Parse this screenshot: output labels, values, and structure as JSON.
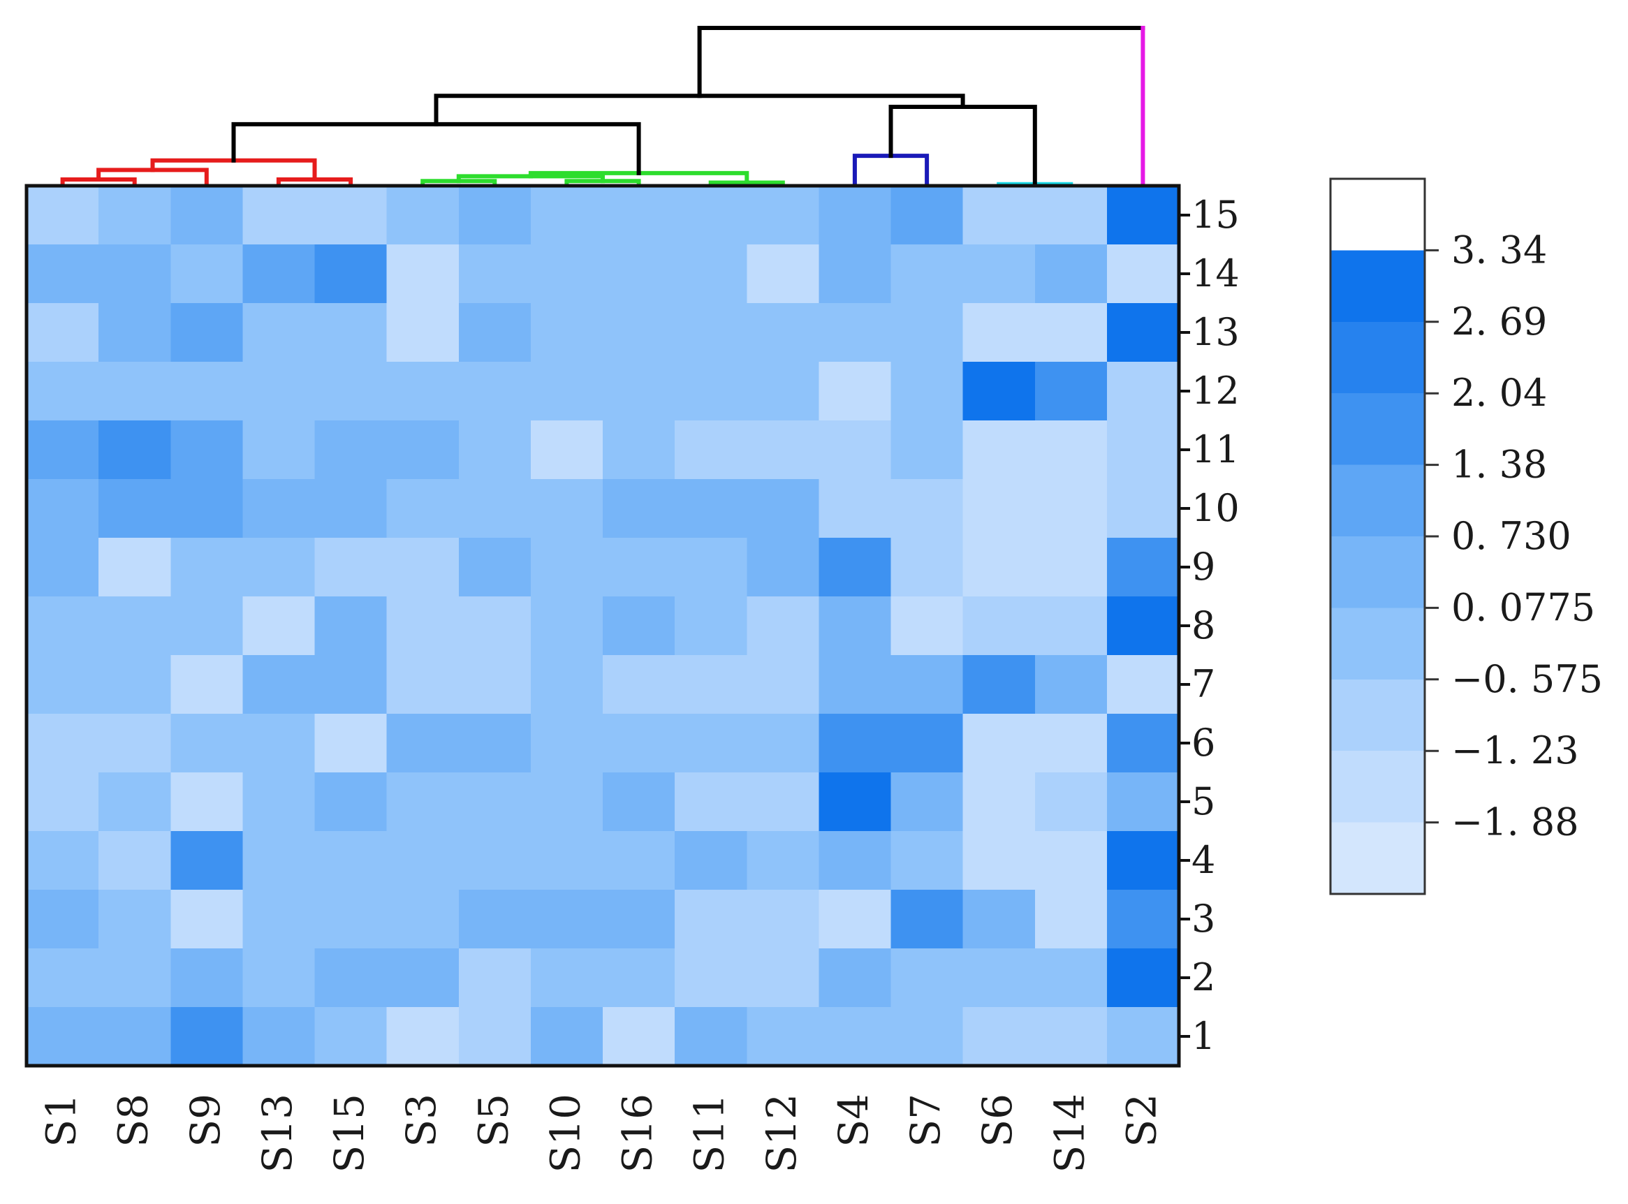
{
  "chart_data": {
    "type": "heatmap",
    "title": "",
    "xlabel": "",
    "ylabel": "",
    "columns": [
      "S1",
      "S8",
      "S9",
      "S13",
      "S15",
      "S3",
      "S5",
      "S10",
      "S16",
      "S11",
      "S12",
      "S4",
      "S7",
      "S6",
      "S14",
      "S2"
    ],
    "rows": [
      "15",
      "14",
      "13",
      "12",
      "11",
      "10",
      "9",
      "8",
      "7",
      "6",
      "5",
      "4",
      "3",
      "2",
      "1"
    ],
    "values": [
      [
        -0.9,
        -0.3,
        0.2,
        -0.9,
        -0.9,
        -0.3,
        0.2,
        -0.3,
        -0.3,
        -0.3,
        -0.3,
        0.2,
        1.0,
        -0.9,
        -0.9,
        2.7
      ],
      [
        0.2,
        0.2,
        -0.3,
        1.2,
        1.7,
        -1.6,
        -0.3,
        -0.3,
        -0.3,
        -0.3,
        -1.6,
        0.2,
        -0.3,
        -0.3,
        0.2,
        -1.3
      ],
      [
        -0.9,
        0.7,
        1.2,
        -0.3,
        -0.3,
        -1.6,
        0.2,
        -0.3,
        -0.3,
        -0.3,
        -0.3,
        -0.3,
        -0.3,
        -1.3,
        -1.3,
        3.0
      ],
      [
        -0.3,
        -0.3,
        -0.3,
        -0.3,
        -0.3,
        -0.3,
        -0.3,
        -0.3,
        -0.3,
        -0.3,
        -0.3,
        -1.3,
        -0.3,
        3.0,
        1.7,
        -0.6
      ],
      [
        1.2,
        1.7,
        1.2,
        -0.3,
        0.7,
        0.2,
        -0.3,
        -1.3,
        -0.3,
        -0.9,
        -0.9,
        -0.9,
        -0.3,
        -1.3,
        -1.3,
        -0.6
      ],
      [
        0.2,
        1.2,
        1.2,
        0.7,
        0.7,
        -0.3,
        -0.3,
        -0.3,
        0.2,
        0.2,
        0.2,
        -0.6,
        -0.9,
        -1.3,
        -1.3,
        -0.6
      ],
      [
        0.2,
        -1.3,
        -0.3,
        -0.3,
        -0.9,
        -0.9,
        0.2,
        -0.3,
        -0.3,
        -0.3,
        0.2,
        1.7,
        -0.6,
        -1.3,
        -1.3,
        1.7
      ],
      [
        -0.3,
        -0.3,
        -0.3,
        -1.3,
        0.7,
        -0.6,
        -0.9,
        -0.3,
        0.2,
        -0.3,
        -0.9,
        0.2,
        -1.3,
        -0.6,
        -0.6,
        3.0
      ],
      [
        -0.3,
        -0.3,
        -1.3,
        0.7,
        0.7,
        -0.9,
        -0.9,
        -0.3,
        -0.9,
        -0.9,
        -0.9,
        0.7,
        0.7,
        1.4,
        0.7,
        -1.3
      ],
      [
        -0.9,
        -0.9,
        -0.3,
        -0.3,
        -1.3,
        0.2,
        0.2,
        -0.3,
        -0.3,
        -0.3,
        -0.3,
        1.7,
        1.4,
        -1.3,
        -1.3,
        1.4
      ],
      [
        -0.9,
        -0.3,
        -1.3,
        -0.3,
        0.2,
        -0.3,
        -0.3,
        -0.3,
        0.2,
        -0.9,
        -0.9,
        3.0,
        0.7,
        -1.3,
        -0.6,
        0.7
      ],
      [
        -0.3,
        -0.9,
        1.4,
        -0.3,
        -0.3,
        -0.3,
        -0.3,
        -0.3,
        -0.3,
        0.2,
        -0.3,
        0.2,
        -0.3,
        -1.3,
        -1.3,
        2.7
      ],
      [
        0.2,
        -0.3,
        -1.3,
        -0.3,
        -0.3,
        -0.3,
        0.2,
        0.2,
        0.2,
        -0.9,
        -0.9,
        -1.3,
        1.4,
        0.2,
        -1.3,
        1.7
      ],
      [
        -0.3,
        -0.3,
        0.2,
        -0.3,
        0.2,
        0.2,
        -0.9,
        -0.3,
        -0.3,
        -0.9,
        -0.9,
        0.2,
        -0.3,
        -0.3,
        -0.3,
        2.7
      ],
      [
        0.7,
        0.2,
        1.7,
        0.2,
        -0.3,
        -1.3,
        -0.9,
        0.2,
        -1.3,
        0.7,
        -0.3,
        -0.3,
        -0.3,
        -0.9,
        -0.9,
        -0.3
      ]
    ],
    "colorbar": {
      "tick_labels": [
        "3. 34",
        "2. 69",
        "2. 04",
        "1. 38",
        "0. 730",
        "0. 0775",
        "−0. 575",
        "−1. 23",
        "−1. 88"
      ],
      "tick_values": [
        3.34,
        2.69,
        2.04,
        1.38,
        0.73,
        0.0775,
        -0.575,
        -1.23,
        -1.88
      ],
      "bins": [
        {
          "min": -2.53,
          "max": -1.88,
          "color": "#d3e6fd"
        },
        {
          "min": -1.88,
          "max": -1.23,
          "color": "#c0dcfd"
        },
        {
          "min": -1.23,
          "max": -0.575,
          "color": "#abd1fc"
        },
        {
          "min": -0.575,
          "max": 0.0775,
          "color": "#8fc3fa"
        },
        {
          "min": 0.0775,
          "max": 0.73,
          "color": "#77b5f8"
        },
        {
          "min": 0.73,
          "max": 1.38,
          "color": "#5ea6f5"
        },
        {
          "min": 1.38,
          "max": 2.04,
          "color": "#3e92f1"
        },
        {
          "min": 2.04,
          "max": 2.69,
          "color": "#2682ee"
        },
        {
          "min": 2.69,
          "max": 3.34,
          "color": "#0f74ec"
        },
        {
          "min": 3.34,
          "max": 4.0,
          "color": "#ffffff"
        }
      ]
    },
    "column_dendrogram": [
      {
        "left": "S1",
        "right": "S8",
        "height": 0.04,
        "cluster": "red"
      },
      {
        "left": "(S1,S8)",
        "right": "S9",
        "height": 0.1,
        "cluster": "red"
      },
      {
        "left": "S13",
        "right": "S15",
        "height": 0.04,
        "cluster": "red"
      },
      {
        "left": "(S1,S8,S9)",
        "right": "(S13,S15)",
        "height": 0.16,
        "cluster": "red"
      },
      {
        "left": "S3",
        "right": "S5",
        "height": 0.03,
        "cluster": "green"
      },
      {
        "left": "S10",
        "right": "S16",
        "height": 0.03,
        "cluster": "green"
      },
      {
        "left": "S11",
        "right": "S12",
        "height": 0.02,
        "cluster": "green"
      },
      {
        "left": "(S3,S5)",
        "right": "(S10,S16)",
        "height": 0.06,
        "cluster": "green"
      },
      {
        "left": "(S3,S5,S10,S16)",
        "right": "(S11,S12)",
        "height": 0.08,
        "cluster": "green"
      },
      {
        "left": "red cluster",
        "right": "green cluster",
        "height": 0.39,
        "cluster": "black"
      },
      {
        "left": "S4",
        "right": "S7",
        "height": 0.19,
        "cluster": "blue"
      },
      {
        "left": "S6",
        "right": "S14",
        "height": 0.01,
        "cluster": "cyan"
      },
      {
        "left": "(S4,S7)",
        "right": "(S6,S14)",
        "height": 0.5,
        "cluster": "black"
      },
      {
        "left": "(S1..S12)",
        "right": "(S4,S7,S6,S14)",
        "height": 0.57,
        "cluster": "black"
      },
      {
        "left": "(S1..S14)",
        "right": "S2",
        "height": 1.0,
        "cluster": "magenta"
      }
    ],
    "dendrogram_colors": {
      "red": "#e61c1c",
      "green": "#2ddd2d",
      "blue": "#1a1ab8",
      "cyan": "#19d8e6",
      "black": "#000000",
      "magenta": "#e619e6"
    },
    "legend": "right"
  }
}
